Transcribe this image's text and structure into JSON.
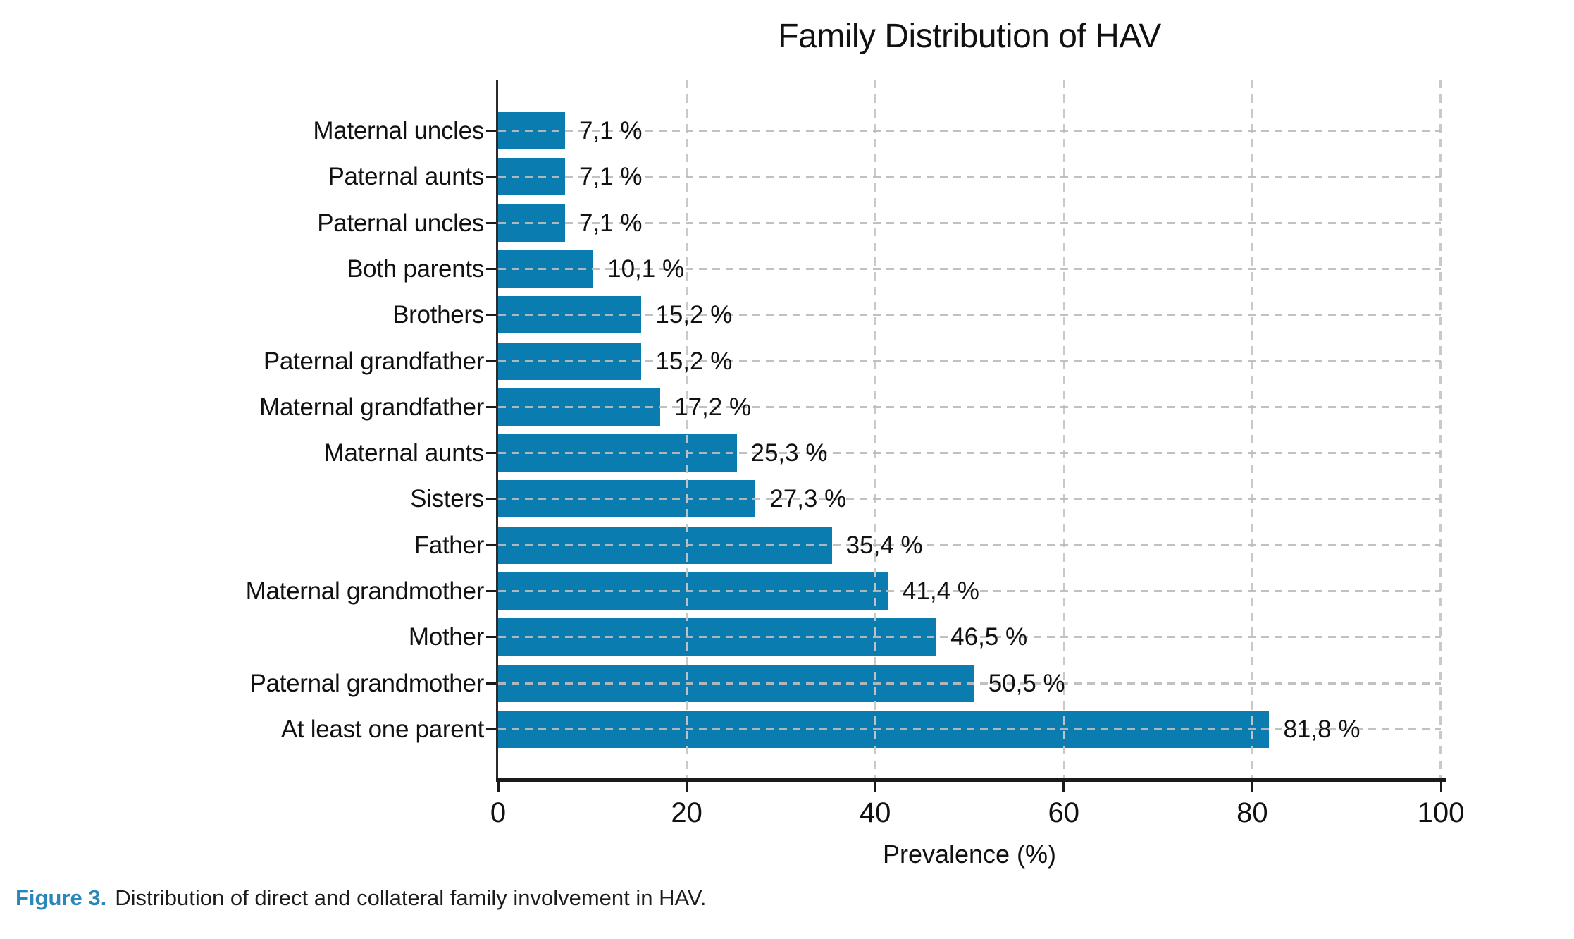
{
  "title": "Family Distribution of HAV",
  "chart_data": {
    "type": "bar",
    "orientation": "horizontal",
    "title": "Family Distribution of HAV",
    "xlabel": "Prevalence (%)",
    "xlim": [
      0,
      100
    ],
    "x_ticks": [
      0,
      20,
      40,
      60,
      80,
      100
    ],
    "x_tick_labels": [
      "0",
      "20",
      "40",
      "60",
      "80",
      "100"
    ],
    "categories": [
      "Maternal uncles",
      "Paternal aunts",
      "Paternal uncles",
      "Both parents",
      "Brothers",
      "Paternal grandfather",
      "Maternal grandfather",
      "Maternal aunts",
      "Sisters",
      "Father",
      "Maternal grandmother",
      "Mother",
      "Paternal grandmother",
      "At least one parent"
    ],
    "values": [
      7.1,
      7.1,
      7.1,
      10.1,
      15.2,
      15.2,
      17.2,
      25.3,
      27.3,
      35.4,
      41.4,
      46.5,
      50.5,
      81.8
    ],
    "value_labels": [
      "7,1 %",
      "7,1 %",
      "7,1 %",
      "10,1 %",
      "15,2 %",
      "15,2 %",
      "17,2 %",
      "25,3 %",
      "27,3 %",
      "35,4 %",
      "41,4 %",
      "46,5 %",
      "50,5 %",
      "81,8 %"
    ],
    "category_order": "top-to-bottom",
    "grid": "dashed gray gridlines, horizontal at each category and vertical at each x tick",
    "legend": "none",
    "bar_color": "#0b7cb0",
    "axis_color": "#262626",
    "grid_color": "#c6c6c6"
  },
  "caption": {
    "label": "Figure 3.",
    "text": "Distribution of direct and collateral family involvement in HAV.",
    "label_color": "#2b87ba"
  }
}
